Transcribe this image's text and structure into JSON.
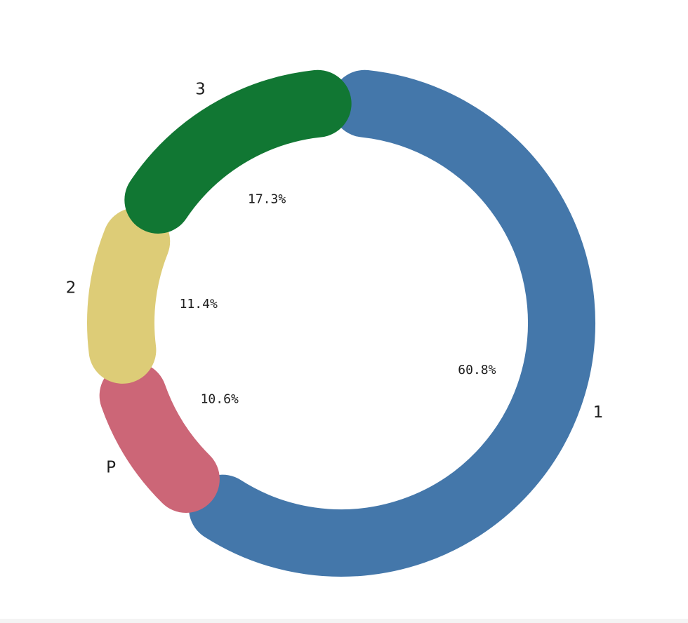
{
  "chart_data": {
    "type": "pie",
    "donut": true,
    "categories": [
      "1",
      "P",
      "2",
      "3"
    ],
    "values": [
      60.8,
      10.6,
      11.4,
      17.3
    ],
    "data_labels": [
      "60.8%",
      "10.6%",
      "11.4%",
      "17.3%"
    ],
    "colors": [
      "#4477aa",
      "#cc6677",
      "#ddcc77",
      "#117733"
    ],
    "start": "top",
    "direction": "clockwise",
    "legend": "none",
    "title": ""
  }
}
